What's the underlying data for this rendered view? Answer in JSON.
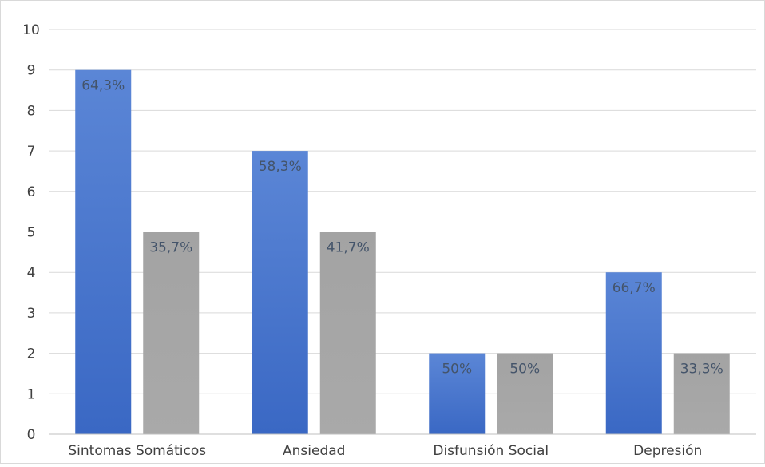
{
  "chart_data": {
    "type": "bar",
    "categories": [
      "Sintomas Somáticos",
      "Ansiedad",
      "Disfunsión Social",
      "Depresión"
    ],
    "series": [
      {
        "values": [
          9,
          7,
          2,
          4
        ],
        "data_labels": [
          "64,3%",
          "58,3%",
          "50%",
          "66,7%"
        ],
        "color": "#4472c4"
      },
      {
        "values": [
          5,
          5,
          2,
          2
        ],
        "data_labels": [
          "35,7%",
          "41,7%",
          "50%",
          "33,3%"
        ],
        "color": "#a5a5a5"
      }
    ],
    "yticks": [
      "0",
      "1",
      "2",
      "3",
      "4",
      "5",
      "6",
      "7",
      "8",
      "9",
      "10"
    ],
    "ylim": [
      0,
      10
    ],
    "grid": true,
    "legend": "none"
  }
}
